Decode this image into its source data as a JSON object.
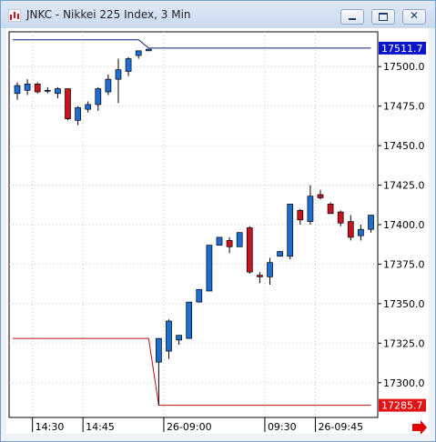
{
  "window": {
    "title": "JNKC - Nikkei 225 Index, 3 Min",
    "icon": "chart-app-icon",
    "buttons": [
      "minimize-icon",
      "restore-icon",
      "close-icon"
    ]
  },
  "chart_data": {
    "type": "candlestick",
    "title": "JNKC - Nikkei 225 Index, 3 Min",
    "ylim": [
      17278,
      17522
    ],
    "y_ticks": [
      "17500.0",
      "17475.0",
      "17450.0",
      "17425.0",
      "17400.0",
      "17375.0",
      "17350.0",
      "17325.0",
      "17300.0"
    ],
    "y_tick_values": [
      17500,
      17475,
      17450,
      17425,
      17400,
      17375,
      17350,
      17325,
      17300
    ],
    "x_tick_labels": [
      "14:30",
      "14:45",
      "26-09:00",
      "09:30",
      "26-09:45"
    ],
    "x_tick_index": [
      1.5,
      6.5,
      14.5,
      24.5,
      29.5
    ],
    "session_break_index": 14.5,
    "candles": [
      {
        "o": 17483,
        "h": 17490,
        "l": 17479,
        "c": 17488
      },
      {
        "o": 17485,
        "h": 17492,
        "l": 17482,
        "c": 17489
      },
      {
        "o": 17489,
        "h": 17490,
        "l": 17483,
        "c": 17484
      },
      {
        "o": 17485,
        "h": 17487,
        "l": 17483,
        "c": 17485
      },
      {
        "o": 17483,
        "h": 17487,
        "l": 17480,
        "c": 17486
      },
      {
        "o": 17486,
        "h": 17486,
        "l": 17466,
        "c": 17467
      },
      {
        "o": 17466,
        "h": 17475,
        "l": 17463,
        "c": 17474
      },
      {
        "o": 17473,
        "h": 17478,
        "l": 17471,
        "c": 17476
      },
      {
        "o": 17476,
        "h": 17487,
        "l": 17472,
        "c": 17486
      },
      {
        "o": 17484,
        "h": 17495,
        "l": 17482,
        "c": 17492
      },
      {
        "o": 17492,
        "h": 17505,
        "l": 17477,
        "c": 17498
      },
      {
        "o": 17497,
        "h": 17506,
        "l": 17494,
        "c": 17505
      },
      {
        "o": 17507,
        "h": 17510,
        "l": 17505,
        "c": 17510
      },
      {
        "o": 17510,
        "h": 17511,
        "l": 17510,
        "c": 17511
      },
      {
        "o": 17313,
        "h": 17328,
        "l": 17286,
        "c": 17328
      },
      {
        "o": 17320,
        "h": 17340,
        "l": 17315,
        "c": 17339
      },
      {
        "o": 17327,
        "h": 17330,
        "l": 17324,
        "c": 17330
      },
      {
        "o": 17328,
        "h": 17351,
        "l": 17328,
        "c": 17351
      },
      {
        "o": 17351,
        "h": 17359,
        "l": 17351,
        "c": 17359
      },
      {
        "o": 17358,
        "h": 17387,
        "l": 17358,
        "c": 17387
      },
      {
        "o": 17387,
        "h": 17392,
        "l": 17387,
        "c": 17392
      },
      {
        "o": 17390,
        "h": 17392,
        "l": 17382,
        "c": 17386
      },
      {
        "o": 17386,
        "h": 17395,
        "l": 17386,
        "c": 17395
      },
      {
        "o": 17398,
        "h": 17399,
        "l": 17369,
        "c": 17370
      },
      {
        "o": 17368,
        "h": 17370,
        "l": 17363,
        "c": 17367
      },
      {
        "o": 17367,
        "h": 17379,
        "l": 17362,
        "c": 17376
      },
      {
        "o": 17380,
        "h": 17383,
        "l": 17380,
        "c": 17383
      },
      {
        "o": 17380,
        "h": 17413,
        "l": 17378,
        "c": 17413
      },
      {
        "o": 17409,
        "h": 17410,
        "l": 17400,
        "c": 17403
      },
      {
        "o": 17402,
        "h": 17425,
        "l": 17400,
        "c": 17418
      },
      {
        "o": 17419,
        "h": 17422,
        "l": 17416,
        "c": 17417
      },
      {
        "o": 17413,
        "h": 17414,
        "l": 17407,
        "c": 17407
      },
      {
        "o": 17408,
        "h": 17409,
        "l": 17399,
        "c": 17401
      },
      {
        "o": 17402,
        "h": 17406,
        "l": 17390,
        "c": 17392
      },
      {
        "o": 17393,
        "h": 17400,
        "l": 17390,
        "c": 17397
      },
      {
        "o": 17397,
        "h": 17406,
        "l": 17395,
        "c": 17406
      }
    ],
    "upper_line": {
      "values": [
        17517,
        17517,
        17517,
        17517,
        17517,
        17517,
        17517,
        17517,
        17517,
        17517,
        17517,
        17517,
        17517,
        17511.7,
        17511.7,
        17511.7,
        17511.7,
        17511.7,
        17511.7,
        17511.7,
        17511.7,
        17511.7,
        17511.7,
        17511.7,
        17511.7,
        17511.7,
        17511.7,
        17511.7,
        17511.7,
        17511.7,
        17511.7,
        17511.7,
        17511.7,
        17511.7,
        17511.7,
        17511.7
      ],
      "color": "#0a1e78",
      "label": "17511.7"
    },
    "lower_line": {
      "values": [
        17328,
        17328,
        17328,
        17328,
        17328,
        17328,
        17328,
        17328,
        17328,
        17328,
        17328,
        17328,
        17328,
        17328,
        17285.7,
        17285.7,
        17285.7,
        17285.7,
        17285.7,
        17285.7,
        17285.7,
        17285.7,
        17285.7,
        17285.7,
        17285.7,
        17285.7,
        17285.7,
        17285.7,
        17285.7,
        17285.7,
        17285.7,
        17285.7,
        17285.7,
        17285.7,
        17285.7,
        17285.7
      ],
      "color": "#b01010",
      "label": "17285.7"
    },
    "colors": {
      "up": "#1e6ed2",
      "down": "#c8141e"
    },
    "arrow": "red-right-arrow"
  }
}
